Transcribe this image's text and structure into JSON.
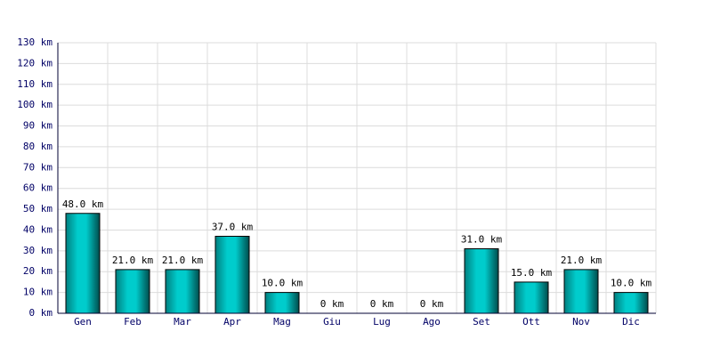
{
  "chart_data": {
    "type": "bar",
    "categories": [
      "Gen",
      "Feb",
      "Mar",
      "Apr",
      "Mag",
      "Giu",
      "Lug",
      "Ago",
      "Set",
      "Ott",
      "Nov",
      "Dic"
    ],
    "values": [
      48,
      21,
      21,
      37,
      10,
      0,
      0,
      0,
      31,
      15,
      21,
      10
    ],
    "value_labels": [
      "48.0 km",
      "21.0 km",
      "21.0 km",
      "37.0 km",
      "10.0 km",
      "0 km",
      "0 km",
      "0 km",
      "31.0 km",
      "15.0 km",
      "21.0 km",
      "10.0 km"
    ],
    "color": "#00cccc",
    "ylim": [
      0,
      130
    ],
    "yticks": [
      {
        "value": 0,
        "label": "0 km"
      },
      {
        "value": 10,
        "label": "10 km"
      },
      {
        "value": 20,
        "label": "20 km"
      },
      {
        "value": 30,
        "label": "30 km"
      },
      {
        "value": 40,
        "label": "40 km"
      },
      {
        "value": 50,
        "label": "50 km"
      },
      {
        "value": 60,
        "label": "60 km"
      },
      {
        "value": 70,
        "label": "70 km"
      },
      {
        "value": 80,
        "label": "80 km"
      },
      {
        "value": 90,
        "label": "90 km"
      },
      {
        "value": 100,
        "label": "100 km"
      },
      {
        "value": 110,
        "label": "110 km"
      },
      {
        "value": 120,
        "label": "120 km"
      },
      {
        "value": 130,
        "label": "130 km"
      }
    ],
    "grid": true
  }
}
